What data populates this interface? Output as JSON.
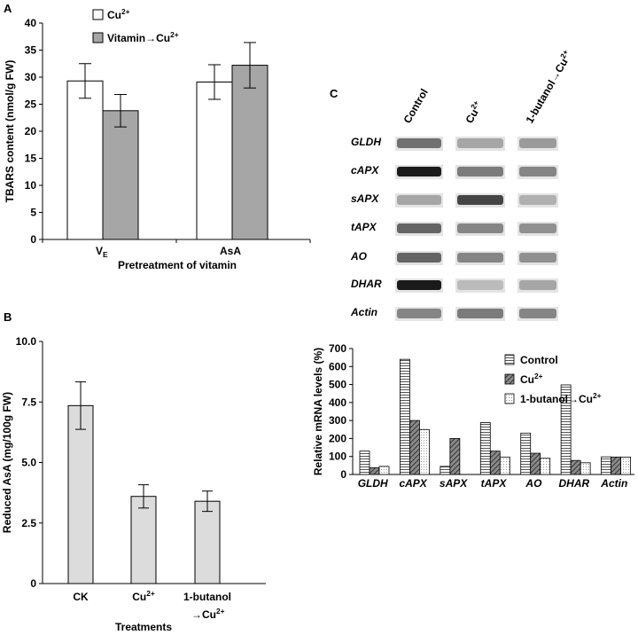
{
  "colors": {
    "white_bar": "#ffffff",
    "gray_bar": "#a6a6a6",
    "light_gray_bar": "#dcdcdc",
    "dark_bar": "#6e6e6e",
    "axis": "#000000"
  },
  "chart_data": [
    {
      "panel": "A",
      "type": "bar",
      "categories": [
        "VE",
        "AsA"
      ],
      "series": [
        {
          "name": "Cu2+",
          "values": [
            29.3,
            29.1
          ],
          "errors": [
            3.2,
            3.2
          ],
          "color": "#ffffff"
        },
        {
          "name": "Vitamin→Cu2+",
          "values": [
            23.8,
            32.2
          ],
          "errors": [
            3.0,
            4.2
          ],
          "color": "#a6a6a6"
        }
      ],
      "xlabel": "Pretreatment of vitamin",
      "ylabel": "TBARS content (nmol/g FW)",
      "ylim": [
        0,
        40
      ],
      "yticks": [
        "0",
        "5",
        "10",
        "15",
        "20",
        "25",
        "30",
        "35",
        "40"
      ],
      "legend_placement": "top-left"
    },
    {
      "panel": "B",
      "type": "bar",
      "categories": [
        "CK",
        "Cu2+",
        "1-butanol→Cu2+"
      ],
      "values": [
        7.35,
        3.6,
        3.4
      ],
      "errors": [
        0.98,
        0.48,
        0.42
      ],
      "xlabel": "Treatments",
      "ylabel": "Reduced AsA (mg/100g FW)",
      "ylim": [
        0,
        10
      ],
      "yticks": [
        "0",
        "2.5",
        "5.0",
        "7.5",
        "10.0"
      ]
    },
    {
      "panel": "C",
      "type": "bar",
      "categories": [
        "GLDH",
        "cAPX",
        "sAPX",
        "tAPX",
        "AO",
        "DHAR",
        "Actin"
      ],
      "series": [
        {
          "name": "Control",
          "values": [
            130,
            640,
            45,
            288,
            230,
            498,
            98
          ],
          "color": "#dcdcdc",
          "pattern": "horizontal-lines"
        },
        {
          "name": "Cu2+",
          "values": [
            38,
            300,
            200,
            130,
            118,
            78,
            97
          ],
          "color": "#6e6e6e",
          "pattern": "diagonal-lines"
        },
        {
          "name": "1-butanol→Cu2+",
          "values": [
            45,
            250,
            0,
            97,
            90,
            65,
            97
          ],
          "color": "#ffffff",
          "pattern": "dots"
        }
      ],
      "xlabel": "",
      "ylabel": "Relative mRNA levels (%)",
      "ylim": [
        0,
        700
      ],
      "yticks": [
        "0",
        "100",
        "200",
        "300",
        "400",
        "500",
        "600",
        "700"
      ],
      "legend_placement": "top-right",
      "gel": {
        "lanes": [
          "Control",
          "Cu2+",
          "1-butanol→Cu2+"
        ],
        "genes": [
          "GLDH",
          "cAPX",
          "sAPX",
          "tAPX",
          "AO",
          "DHAR",
          "Actin"
        ],
        "intensity": [
          [
            0.55,
            0.3,
            0.35
          ],
          [
            0.95,
            0.5,
            0.45
          ],
          [
            0.3,
            0.75,
            0.25
          ],
          [
            0.6,
            0.45,
            0.4
          ],
          [
            0.6,
            0.45,
            0.4
          ],
          [
            0.95,
            0.2,
            0.3
          ],
          [
            0.45,
            0.5,
            0.45
          ]
        ]
      }
    }
  ],
  "panels": {
    "a": {
      "letter": "A",
      "legend": [
        {
          "base": "Cu",
          "sup": "2+"
        },
        {
          "base": "Vitamin→Cu",
          "sup": "2+"
        }
      ],
      "cat_labels": [
        {
          "base": "V",
          "sub": "E"
        },
        {
          "base": "AsA",
          "sub": ""
        }
      ]
    },
    "b": {
      "letter": "B",
      "cat_labels": [
        {
          "line1": "CK",
          "line2": ""
        },
        {
          "line1": "Cu",
          "sup": "2+",
          "line2": ""
        },
        {
          "line1": "1-butanol",
          "line2": "→Cu",
          "sup2": "2+"
        }
      ]
    },
    "c": {
      "letter": "C",
      "lane_labels": [
        {
          "base": "Control",
          "sup": ""
        },
        {
          "base": "Cu",
          "sup": "2+"
        },
        {
          "base": "1-butanol→Cu",
          "sup": "2+"
        }
      ],
      "legend": [
        {
          "base": "Control",
          "sup": ""
        },
        {
          "base": "Cu",
          "sup": "2+"
        },
        {
          "base": "1-butanol→Cu",
          "sup": "2+"
        }
      ]
    }
  }
}
